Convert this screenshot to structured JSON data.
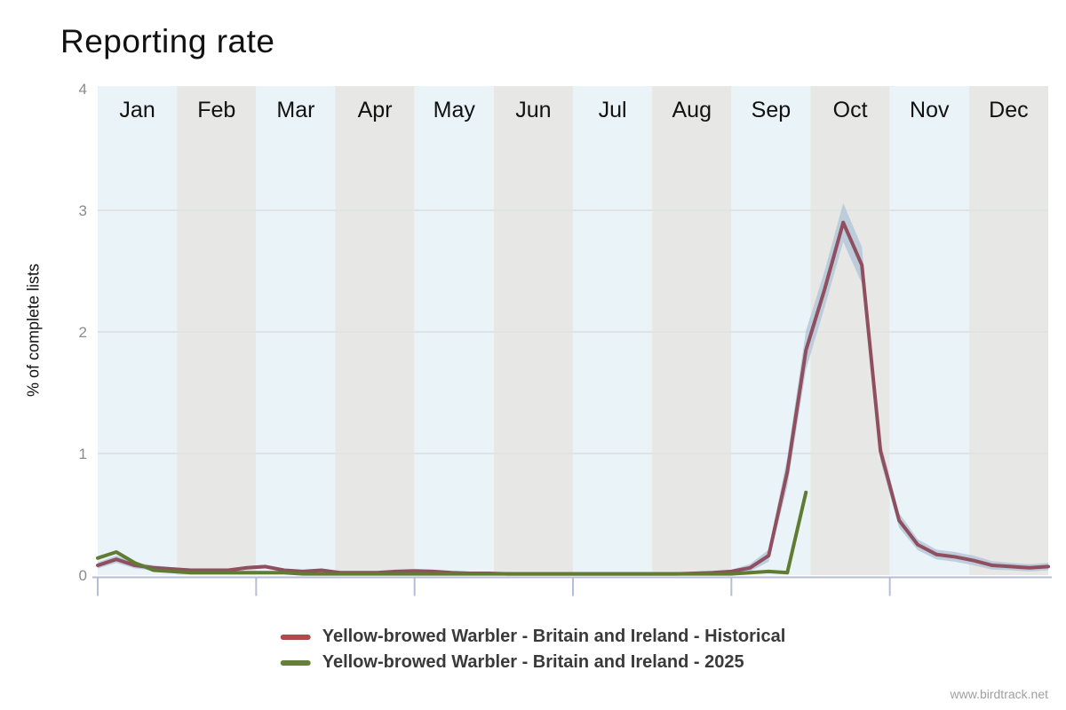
{
  "header": {
    "title": "Reporting rate"
  },
  "y_axis_label": "% of complete lists",
  "watermark": "www.birdtrack.net",
  "chart_data": {
    "type": "line",
    "title": "Reporting rate",
    "ylabel": "% of complete lists",
    "ylim": [
      0,
      4
    ],
    "yticks": [
      0,
      1,
      2,
      3,
      4
    ],
    "grid_values": [
      1,
      2,
      3
    ],
    "categories": [
      "Jan",
      "Feb",
      "Mar",
      "Apr",
      "May",
      "Jun",
      "Jul",
      "Aug",
      "Sep",
      "Oct",
      "Nov",
      "Dec"
    ],
    "x_model": "52 weekly values spanning Jan-Dec",
    "x_tick_month_starts": [
      "Jan",
      "Mar",
      "May",
      "Jul",
      "Sep",
      "Nov"
    ],
    "colors": {
      "month_band_light": "#eaf3f8",
      "month_band_gray": "#e7e7e5",
      "gridline": "#dfe3e4",
      "axis": "#b5bdd9",
      "ytick_text": "#8b8b8b",
      "month_text": "#111111",
      "legend_text": "#3a3a3a",
      "watermark_text": "#a0a0a0"
    },
    "series": [
      {
        "name": "Yellow-browed Warbler - Britain and Ireland - Historical",
        "legend_color": "#b04b4b",
        "line_color": "#8f4f5e",
        "band_color": "#b5c7d9",
        "values": [
          0.08,
          0.13,
          0.08,
          0.06,
          0.05,
          0.04,
          0.04,
          0.04,
          0.06,
          0.07,
          0.04,
          0.03,
          0.04,
          0.02,
          0.02,
          0.02,
          0.03,
          0.035,
          0.03,
          0.02,
          0.015,
          0.015,
          0.01,
          0.01,
          0.01,
          0.01,
          0.01,
          0.01,
          0.01,
          0.01,
          0.01,
          0.01,
          0.015,
          0.02,
          0.03,
          0.06,
          0.16,
          0.85,
          1.85,
          2.35,
          2.9,
          2.55,
          1.02,
          0.45,
          0.25,
          0.17,
          0.15,
          0.12,
          0.08,
          0.07,
          0.06,
          0.07
        ],
        "band_delta": [
          0.025,
          0.03,
          0.025,
          0.02,
          0.015,
          0.01,
          0.01,
          0.01,
          0.015,
          0.015,
          0.01,
          0.01,
          0.01,
          0.01,
          0.01,
          0.01,
          0.01,
          0.01,
          0.01,
          0.01,
          0.008,
          0.008,
          0.006,
          0.006,
          0.006,
          0.006,
          0.006,
          0.006,
          0.006,
          0.006,
          0.006,
          0.006,
          0.008,
          0.01,
          0.015,
          0.03,
          0.05,
          0.12,
          0.16,
          0.15,
          0.16,
          0.15,
          0.08,
          0.06,
          0.045,
          0.04,
          0.04,
          0.04,
          0.035,
          0.03,
          0.03,
          0.03
        ]
      },
      {
        "name": "Yellow-browed Warbler - Britain and Ireland - 2025",
        "legend_color": "#66803b",
        "line_color": "#5f7c32",
        "values": [
          0.14,
          0.19,
          0.1,
          0.04,
          0.03,
          0.02,
          0.02,
          0.02,
          0.02,
          0.02,
          0.02,
          0.01,
          0.01,
          0.01,
          0.01,
          0.01,
          0.01,
          0.01,
          0.01,
          0.01,
          0.01,
          0.01,
          0.01,
          0.01,
          0.01,
          0.01,
          0.01,
          0.01,
          0.01,
          0.01,
          0.01,
          0.01,
          0.01,
          0.01,
          0.01,
          0.02,
          0.03,
          0.02,
          0.68
        ]
      }
    ],
    "legend_position": "bottom-center",
    "grid": "horizontal-only"
  }
}
